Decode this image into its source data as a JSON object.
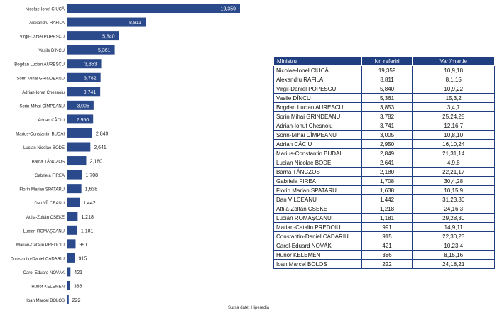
{
  "chart_data": {
    "type": "bar",
    "orientation": "horizontal",
    "categories": [
      "Nicolae-Ionel CIUCĂ",
      "Alexandru RAFILA",
      "Virgil-Daniel POPESCU",
      "Vasile DÎNCU",
      "Bogdan Lucian AURESCU",
      "Sorin Mihai GRINDEANU",
      "Adrian-Ionuț Chesnoiu",
      "Sorin-Mihai CÎMPEANU",
      "Adrian CÂCIU",
      "Marius-Constantin BUDAI",
      "Lucian Nicolae BODE",
      "Barna TÁNCZOS",
      "Gabriela FIREA",
      "Florin Marian SPATARU",
      "Dan VÎLCEANU",
      "Attila-Zoltán CSEKE",
      "Lucian ROMAȘCANU",
      "Marian-Cătălin PREDOIU",
      "Constantin-Daniel CADARIU",
      "Carol-Eduard NOVÁK",
      "Hunor KELEMEN",
      "Ioan Marcel BOLOȘ"
    ],
    "values": [
      19359,
      8811,
      5840,
      5361,
      3853,
      3782,
      3741,
      3005,
      2950,
      2849,
      2641,
      2180,
      1708,
      1638,
      1442,
      1218,
      1181,
      991,
      915,
      421,
      386,
      222
    ],
    "value_labels": [
      "19,359",
      "8,811",
      "5,840",
      "5,361",
      "3,853",
      "3,782",
      "3,741",
      "3,005",
      "2,950",
      "2,849",
      "2,641",
      "2,180",
      "1,708",
      "1,638",
      "1,442",
      "1,218",
      "1,181",
      "991",
      "915",
      "421",
      "386",
      "222"
    ],
    "xlim": [
      0,
      19359
    ],
    "grid": false,
    "legend": "none",
    "bar_color": "#2b4a8b"
  },
  "source_text": "Sursa date: Hiperedia",
  "table": {
    "headers": [
      "Ministru",
      "Nr. referiri",
      "Varf/martie"
    ],
    "rows": [
      [
        "Nicolae-Ionel CIUCĂ",
        "19,359",
        "10,9,18"
      ],
      [
        "Alexandru RAFILA",
        "8,811",
        "8,1,15"
      ],
      [
        "Virgil-Daniel POPESCU",
        "5,840",
        "10,9,22"
      ],
      [
        "Vasile DÎNCU",
        "5,361",
        "15,3,2"
      ],
      [
        "Bogdan Lucian AURESCU",
        "3,853",
        "3,4,7"
      ],
      [
        "Sorin Mihai GRINDEANU",
        "3,782",
        "25,24,28"
      ],
      [
        "Adrian-Ionut Chesnoiu",
        "3,741",
        "12,16,7"
      ],
      [
        "Sorin-Mihai CÎMPEANU",
        "3,005",
        "10,8,10"
      ],
      [
        "Adrian CÂCIU",
        "2,950",
        "16,10,24"
      ],
      [
        "Marius-Constantin BUDAI",
        "2,849",
        "21,31,14"
      ],
      [
        "Lucian Nicolae BODE",
        "2,641",
        "4,9,8"
      ],
      [
        "Barna TÁNCZOS",
        "2,180",
        "22,21,17"
      ],
      [
        "Gabriela FIREA",
        "1,708",
        "30,4,28"
      ],
      [
        "Florin Marian SPATARU",
        "1,638",
        "10,15,9"
      ],
      [
        "Dan VÎLCEANU",
        "1,442",
        "31,23,30"
      ],
      [
        "Attila-Zoltán CSEKE",
        "1,218",
        "24,16,3"
      ],
      [
        "Lucian ROMAȘCANU",
        "1,181",
        "29,28,30"
      ],
      [
        "Marian-Catalin PREDOIU",
        "991",
        "14,9,11"
      ],
      [
        "Constantin-Daniel CADARIU",
        "915",
        "22,30,23"
      ],
      [
        "Carol-Eduard NOVÁK",
        "421",
        "10,23,4"
      ],
      [
        "Hunor KELEMEN",
        "386",
        "8,15,16"
      ],
      [
        "Ioan Marcel BOLOS",
        "222",
        "24,18,21"
      ]
    ]
  }
}
